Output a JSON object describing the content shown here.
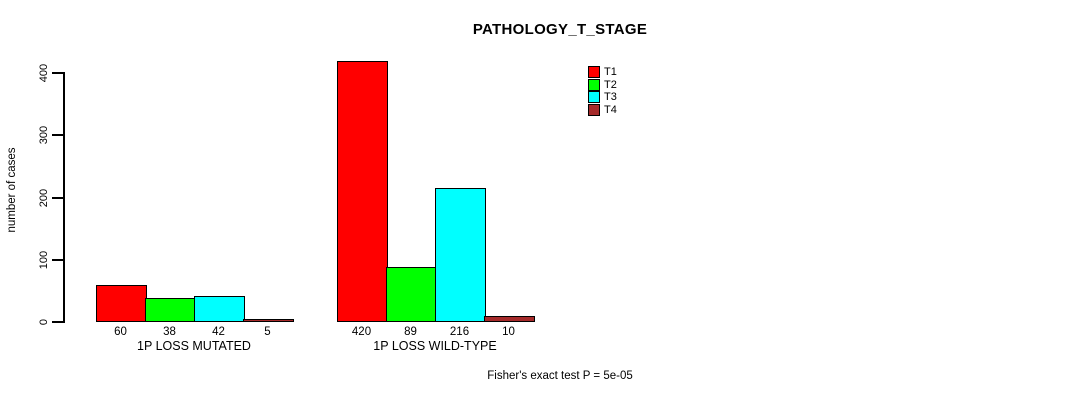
{
  "chart_data": {
    "type": "bar",
    "title": "PATHOLOGY_T_STAGE",
    "ylabel": "number of cases",
    "xlabel": "",
    "ylim": [
      0,
      400
    ],
    "yticks": [
      0,
      100,
      200,
      300,
      400
    ],
    "categories": [
      "1P LOSS MUTATED",
      "1P LOSS WILD-TYPE"
    ],
    "series": [
      {
        "name": "T1",
        "color": "#FF0000",
        "values": [
          60,
          420
        ]
      },
      {
        "name": "T2",
        "color": "#00FF00",
        "values": [
          38,
          89
        ]
      },
      {
        "name": "T3",
        "color": "#00FFFF",
        "values": [
          42,
          216
        ]
      },
      {
        "name": "T4",
        "color": "#A52A2A",
        "values": [
          5,
          10
        ]
      }
    ],
    "bar_value_labels_shown": true,
    "legend": {
      "position": "top-right",
      "entries": [
        "T1",
        "T2",
        "T3",
        "T4"
      ]
    },
    "grid": false,
    "annotation": "Fisher's exact test P = 5e-05"
  },
  "colors": {
    "background": "#FFFFFF",
    "axis": "#000000",
    "text": "#000000"
  }
}
